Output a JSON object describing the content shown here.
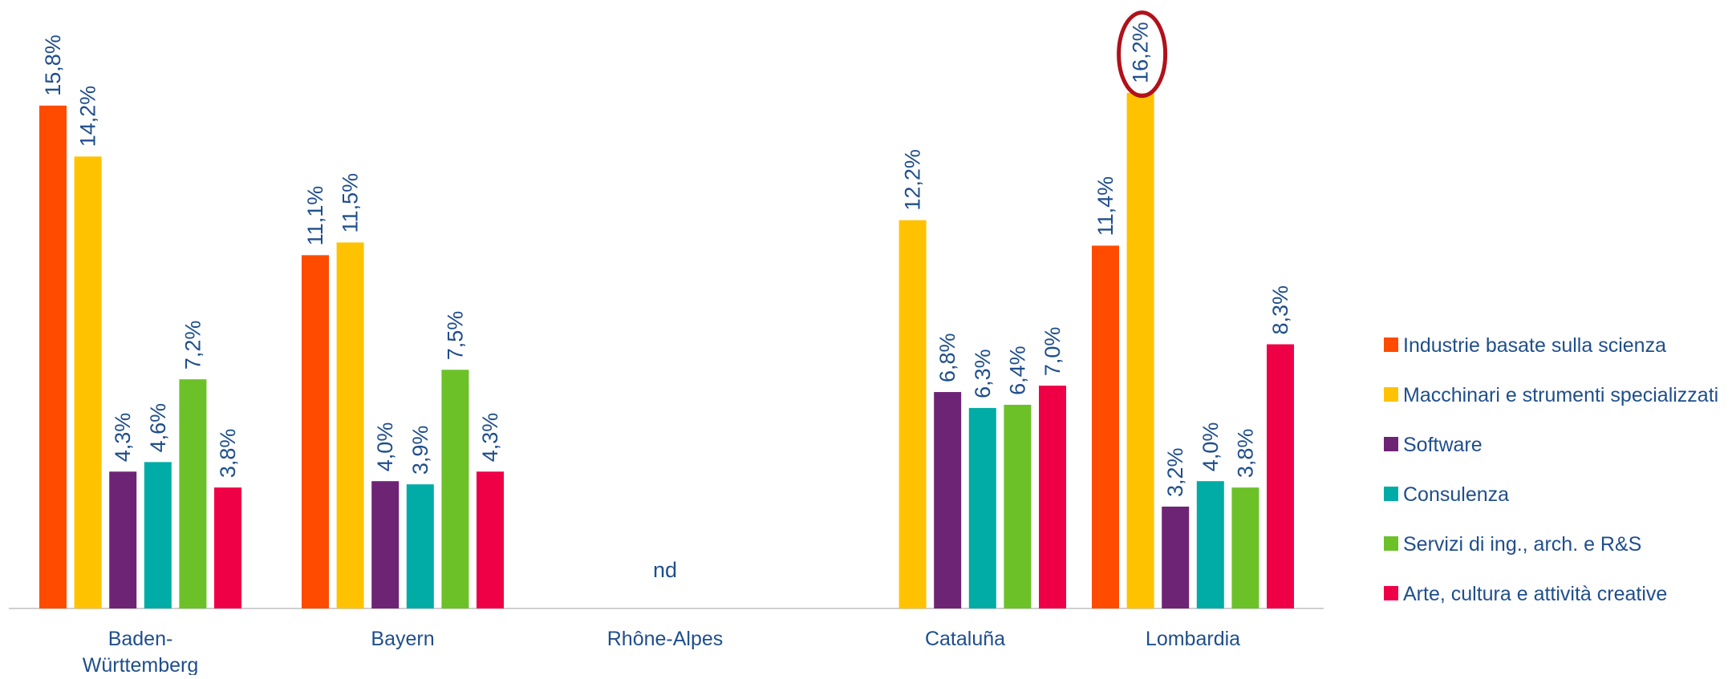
{
  "chart_data": {
    "type": "bar",
    "categories": [
      [
        "Baden-",
        "Württemberg"
      ],
      [
        "Bayern"
      ],
      [
        "Rhône-Alpes"
      ],
      [
        "Cataluña"
      ],
      [
        "Lombardia"
      ]
    ],
    "series": [
      {
        "name": "Industrie basate sulla scienza",
        "color": "#ff4b00",
        "values": [
          15.8,
          11.1,
          null,
          null,
          11.4
        ],
        "labels": [
          "15,8%",
          "11,1%",
          null,
          null,
          "11,4%"
        ]
      },
      {
        "name": "Macchinari e strumenti specializzati",
        "color": "#ffc200",
        "values": [
          14.2,
          11.5,
          null,
          12.2,
          16.2
        ],
        "labels": [
          "14,2%",
          "11,5%",
          null,
          "12,2%",
          "16,2%"
        ]
      },
      {
        "name": "Software",
        "color": "#6e2474",
        "values": [
          4.3,
          4.0,
          null,
          6.8,
          3.2
        ],
        "labels": [
          "4,3%",
          "4,0%",
          null,
          "6,8%",
          "3,2%"
        ]
      },
      {
        "name": "Consulenza",
        "color": "#00aca5",
        "values": [
          4.6,
          3.9,
          null,
          6.3,
          4.0
        ],
        "labels": [
          "4,6%",
          "3,9%",
          null,
          "6,3%",
          "4,0%"
        ]
      },
      {
        "name": "Servizi di ing., arch. e R&S",
        "color": "#6cc129",
        "values": [
          7.2,
          7.5,
          null,
          6.4,
          3.8
        ],
        "labels": [
          "7,2%",
          "7,5%",
          null,
          "6,4%",
          "3,8%"
        ]
      },
      {
        "name": "Arte, cultura e attività creative",
        "color": "#ef0046",
        "values": [
          3.8,
          4.3,
          null,
          7.0,
          8.3
        ],
        "labels": [
          "3,8%",
          "4,3%",
          null,
          "7,0%",
          "8,3%"
        ]
      }
    ],
    "missing_label": "nd",
    "highlight": {
      "series": 1,
      "category": 4
    },
    "ylim": [
      0,
      17
    ],
    "grid": false,
    "legend": "right",
    "colors": {
      "label_text": "#1f4e8c",
      "axis": "#cfcfcf",
      "highlight_ring": "#b0111a"
    }
  }
}
